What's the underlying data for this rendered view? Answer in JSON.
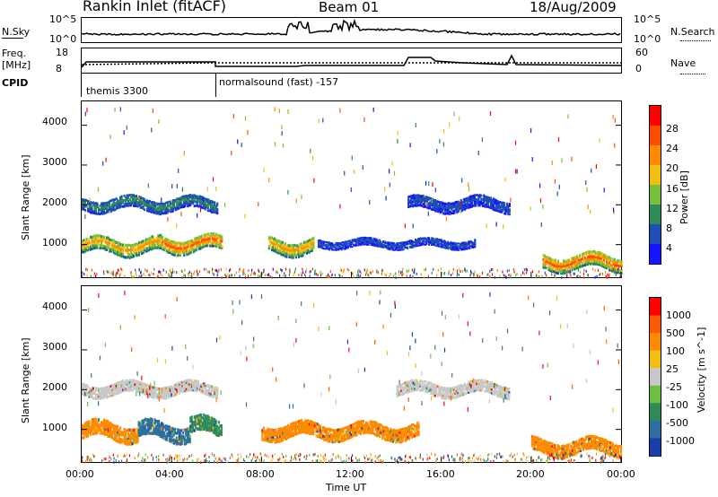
{
  "header": {
    "station": "Rankin Inlet (fitACF)",
    "beam": "Beam 01",
    "date": "18/Aug/2009"
  },
  "top_panels": {
    "nsky_label": "N.Sky",
    "nsky_ticks": [
      "10^5",
      "10^0"
    ],
    "nsearch_label": "N.Search",
    "nsearch_ticks": [
      "10^5",
      "10^0"
    ],
    "freq_label": "Freq.",
    "freq_unit": "[MHz]",
    "freq_ticks": [
      "18",
      "8"
    ],
    "nave_label": "Nave",
    "nave_ticks": [
      "60",
      "0"
    ],
    "cpid_label": "CPID",
    "cpid_modes": [
      "themis 3300",
      "normalsound (fast) -157"
    ]
  },
  "chart_data": [
    {
      "type": "heatmap",
      "panel": "power",
      "ylabel": "Slant Range [km]",
      "yticks": [
        "1000",
        "2000",
        "3000",
        "4000"
      ],
      "ylim": [
        180,
        4600
      ],
      "xticks": [
        "00:00",
        "04:00",
        "08:00",
        "12:00",
        "16:00",
        "20:00",
        "00:00"
      ],
      "colorbar_label": "Power [dB]",
      "colorbar_ticks": [
        "4",
        "8",
        "12",
        "16",
        "20",
        "24",
        "28"
      ],
      "colorbar_colors": [
        "#1515ff",
        "#1f4fb4",
        "#2f8a5a",
        "#7ac03a",
        "#f0c010",
        "#ff8a00",
        "#ff4d00",
        "#ff0000"
      ],
      "bands": [
        {
          "start_h": 0.0,
          "end_h": 3.5,
          "range_km": 1000,
          "width_km": 350,
          "level": 5
        },
        {
          "start_h": 3.5,
          "end_h": 6.2,
          "range_km": 1050,
          "width_km": 350,
          "level": 6
        },
        {
          "start_h": 8.3,
          "end_h": 10.3,
          "range_km": 1000,
          "width_km": 350,
          "level": 5
        },
        {
          "start_h": 0.0,
          "end_h": 6.0,
          "range_km": 2050,
          "width_km": 300,
          "level": 2
        },
        {
          "start_h": 10.5,
          "end_h": 17.5,
          "range_km": 1050,
          "width_km": 200,
          "level": 1
        },
        {
          "start_h": 14.5,
          "end_h": 19.0,
          "range_km": 2050,
          "width_km": 300,
          "level": 1
        },
        {
          "start_h": 20.5,
          "end_h": 24.0,
          "range_km": 600,
          "width_km": 350,
          "level": 6
        }
      ]
    },
    {
      "type": "heatmap",
      "panel": "velocity",
      "ylabel": "Slant Range [km]",
      "yticks": [
        "1000",
        "2000",
        "3000",
        "4000"
      ],
      "ylim": [
        180,
        4600
      ],
      "xticks": [
        "00:00",
        "04:00",
        "08:00",
        "12:00",
        "16:00",
        "20:00",
        "00:00"
      ],
      "xlabel": "Time UT",
      "colorbar_label": "Velocity [m s^-1]",
      "colorbar_ticks": [
        "1000",
        "500",
        "100",
        "25",
        "-25",
        "-100",
        "-500",
        "-1000"
      ],
      "colorbar_colors": [
        "#1a3fa8",
        "#2d6fa0",
        "#2f8a5a",
        "#6cc040",
        "#c8c8c8",
        "#f0c010",
        "#ff8a00",
        "#ff5a00",
        "#ff0000"
      ],
      "bands": [
        {
          "start_h": 0.0,
          "end_h": 2.5,
          "range_km": 1000,
          "width_km": 400,
          "color": "#ff8a00"
        },
        {
          "start_h": 2.5,
          "end_h": 4.8,
          "range_km": 1000,
          "width_km": 400,
          "color": "#2d6fa0"
        },
        {
          "start_h": 4.8,
          "end_h": 6.2,
          "range_km": 1100,
          "width_km": 400,
          "color": "#2f8a5a"
        },
        {
          "start_h": 0.0,
          "end_h": 6.0,
          "range_km": 2050,
          "width_km": 300,
          "color": "#c8c8c8"
        },
        {
          "start_h": 8.0,
          "end_h": 15.0,
          "range_km": 1000,
          "width_km": 350,
          "color": "#ff8a00"
        },
        {
          "start_h": 14.0,
          "end_h": 19.0,
          "range_km": 2050,
          "width_km": 300,
          "color": "#c8c8c8"
        },
        {
          "start_h": 20.0,
          "end_h": 24.0,
          "range_km": 600,
          "width_km": 350,
          "color": "#ff8a00"
        }
      ]
    }
  ]
}
